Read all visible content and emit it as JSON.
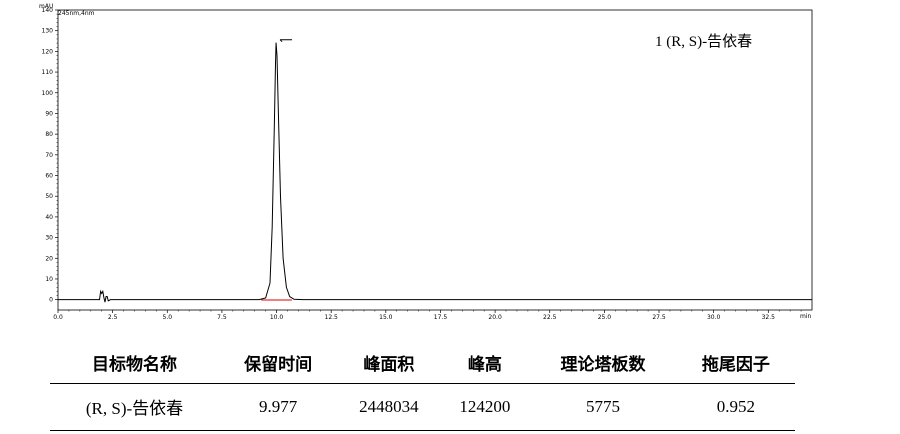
{
  "chart_data": {
    "type": "line",
    "y_unit": "mAU",
    "detector_label": "245nm,4nm",
    "x_unit": "min",
    "xlim": [
      0,
      34.5
    ],
    "ylim": [
      -5,
      140
    ],
    "x_ticks": [
      "0.0",
      "2.5",
      "5.0",
      "7.5",
      "10.0",
      "12.5",
      "15.0",
      "17.5",
      "20.0",
      "22.5",
      "25.0",
      "27.5",
      "30.0",
      "32.5"
    ],
    "y_ticks": [
      "0",
      "10",
      "20",
      "30",
      "40",
      "50",
      "60",
      "70",
      "80",
      "90",
      "100",
      "110",
      "120",
      "130",
      "140"
    ],
    "series": [
      {
        "values": [
          [
            0,
            0
          ],
          [
            1.9,
            0
          ],
          [
            1.95,
            4
          ],
          [
            2.0,
            3
          ],
          [
            2.05,
            4
          ],
          [
            2.1,
            1
          ],
          [
            2.15,
            -1.2
          ],
          [
            2.2,
            1.5
          ],
          [
            2.25,
            1.5
          ],
          [
            2.3,
            -0.6
          ],
          [
            2.4,
            0
          ],
          [
            9.2,
            0
          ],
          [
            9.5,
            0.8
          ],
          [
            9.7,
            8
          ],
          [
            9.8,
            35
          ],
          [
            9.9,
            85
          ],
          [
            9.95,
            113
          ],
          [
            9.977,
            124.2
          ],
          [
            10.02,
            118
          ],
          [
            10.08,
            92
          ],
          [
            10.18,
            50
          ],
          [
            10.3,
            20
          ],
          [
            10.45,
            6
          ],
          [
            10.6,
            1.5
          ],
          [
            10.8,
            0.2
          ],
          [
            11.2,
            0
          ],
          [
            34.5,
            0
          ]
        ]
      }
    ],
    "peak_label": "1    (R, S)-告依春",
    "peak_table": {
      "headers": [
        "目标物名称",
        "保留时间",
        "峰面积",
        "峰高",
        "理论塔板数",
        "拖尾因子"
      ],
      "rows": [
        [
          "(R, S)-告依春",
          "9.977",
          "2448034",
          "124200",
          "5775",
          "0.952"
        ]
      ]
    }
  }
}
